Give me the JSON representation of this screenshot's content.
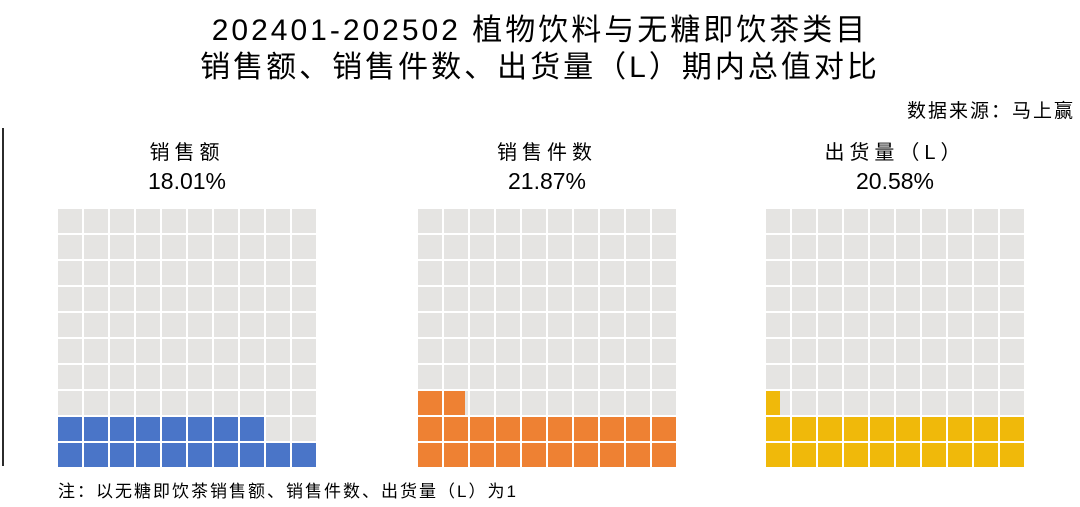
{
  "title": {
    "line1": "202401-202502 植物饮料与无糖即饮茶类目",
    "line2": "销售额、销售件数、出货量（L）期内总值对比"
  },
  "source": "数据来源：马上赢",
  "note": "注：以无糖即饮茶销售额、销售件数、出货量（L）为1",
  "chart_data": {
    "type": "waffle",
    "title": "202401-202502 植物饮料与无糖即饮茶类目 销售额、销售件数、出货量（L）期内总值对比",
    "grid": {
      "rows": 10,
      "cols": 10,
      "cell_unit_pct": 1,
      "fill_origin": "bottom-left"
    },
    "charts": [
      {
        "label": "销售额",
        "value_pct": 18.01,
        "value_label": "18.01%",
        "color": "#4A75C8"
      },
      {
        "label": "销售件数",
        "value_pct": 21.87,
        "value_label": "21.87%",
        "color": "#EE8133"
      },
      {
        "label": "出货量（L）",
        "value_pct": 20.58,
        "value_label": "20.58%",
        "color": "#F0B90A"
      }
    ],
    "empty_color": "#E5E4E2",
    "baseline_note": "以无糖即饮茶销售额、销售件数、出货量（L）为1",
    "source": "马上赢"
  }
}
